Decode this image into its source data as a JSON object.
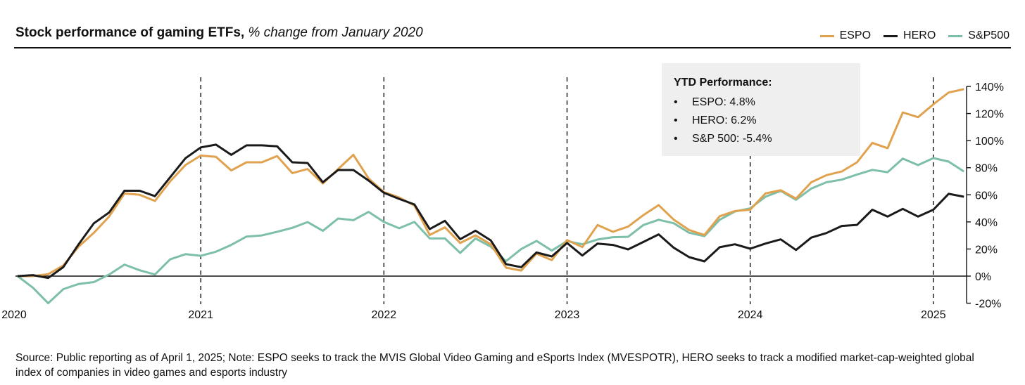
{
  "title": {
    "bold": "Stock performance of gaming ETFs,",
    "italic": "% change from January 2020"
  },
  "legend": [
    {
      "label": "ESPO",
      "color": "#e0a24e"
    },
    {
      "label": "HERO",
      "color": "#1a1a1a"
    },
    {
      "label": "S&P500",
      "color": "#7dbfa8"
    }
  ],
  "ytd": {
    "heading": "YTD Performance:",
    "bullet": "•",
    "rows": [
      "ESPO: 4.8%",
      "HERO: 6.2%",
      "S&P 500: -5.4%"
    ]
  },
  "footer": "Source: Public reporting as of April 1, 2025; Note: ESPO seeks to track the MVIS Global Video Gaming and eSports Index (MVESPOTR), HERO seeks to track a modified market-cap-weighted global index of companies in video games and esports industry",
  "chart_data": {
    "type": "line",
    "title": "Stock performance of gaming ETFs, % change from January 2020",
    "xlabel": "",
    "ylabel": "% change",
    "x_start": "2020-01",
    "x_frequency": "monthly",
    "x_end": "2025-03",
    "x_ticks": [
      "2020",
      "2021",
      "2022",
      "2023",
      "2024",
      "2025"
    ],
    "y_ticks": [
      "-20%",
      "0%",
      "20%",
      "40%",
      "60%",
      "80%",
      "100%",
      "120%",
      "140%"
    ],
    "ylim": [
      -20,
      140
    ],
    "legend_position": "top-right",
    "vertical_reference_lines": [
      "2021",
      "2022",
      "2023",
      "2024",
      "2025"
    ],
    "series": [
      {
        "name": "ESPO",
        "color": "#e0a24e",
        "values": [
          0,
          0,
          1.4,
          7.9,
          21.8,
          32,
          44,
          61,
          60,
          55.5,
          70,
          82,
          89,
          88,
          78,
          84,
          84,
          88.6,
          76,
          79,
          68.4,
          79,
          89.5,
          72,
          62,
          58,
          52,
          30.4,
          36,
          24.4,
          30,
          23.5,
          6.2,
          4.1,
          16.6,
          11.8,
          26.6,
          21.4,
          37.7,
          32.7,
          36.5,
          45,
          52.4,
          41.6,
          34,
          30.4,
          44.2,
          48,
          49,
          61,
          63.4,
          57.2,
          69.3,
          74.5,
          77.2,
          84,
          98.3,
          94.4,
          120.8,
          117.3,
          126.8,
          135.5,
          138
        ]
      },
      {
        "name": "HERO",
        "color": "#1a1a1a",
        "values": [
          0,
          0.7,
          -1.4,
          6.7,
          23.5,
          39,
          47,
          63,
          63,
          59,
          73,
          87,
          95,
          97,
          89.5,
          96.5,
          96.5,
          95.8,
          84,
          83.5,
          69.3,
          78.3,
          78.3,
          70.5,
          61.5,
          57,
          52.9,
          34.7,
          40.8,
          27.3,
          33.5,
          26.4,
          8.8,
          6.6,
          17.5,
          14.5,
          24.4,
          15.2,
          24,
          23,
          19.7,
          25.2,
          30.8,
          20.9,
          14,
          10.9,
          21.3,
          23.5,
          20.2,
          24,
          27.1,
          19.3,
          28.4,
          31.8,
          37,
          37.8,
          49,
          43.9,
          49.6,
          43.9,
          49,
          60.7,
          58.6
        ]
      },
      {
        "name": "S&P500",
        "color": "#7dbfa8",
        "values": [
          0,
          -8.5,
          -20,
          -9.6,
          -5.8,
          -4.4,
          1.2,
          8.5,
          4.3,
          1.2,
          12.4,
          16.2,
          15,
          18,
          23,
          29.2,
          30,
          32.7,
          35.6,
          39.9,
          33.4,
          42.5,
          41.3,
          47.4,
          40,
          35.3,
          40,
          27.8,
          27.8,
          17.1,
          27.8,
          21.8,
          11,
          20,
          26,
          18.8,
          25.8,
          23.5,
          27,
          28.7,
          29,
          37.7,
          41.6,
          39,
          32,
          29.5,
          41.6,
          47.7,
          50,
          58.6,
          62.9,
          56.3,
          64.6,
          69.3,
          71.2,
          75,
          78.4,
          76.7,
          86.7,
          81.9,
          87.1,
          84.5,
          77.2
        ]
      }
    ]
  }
}
